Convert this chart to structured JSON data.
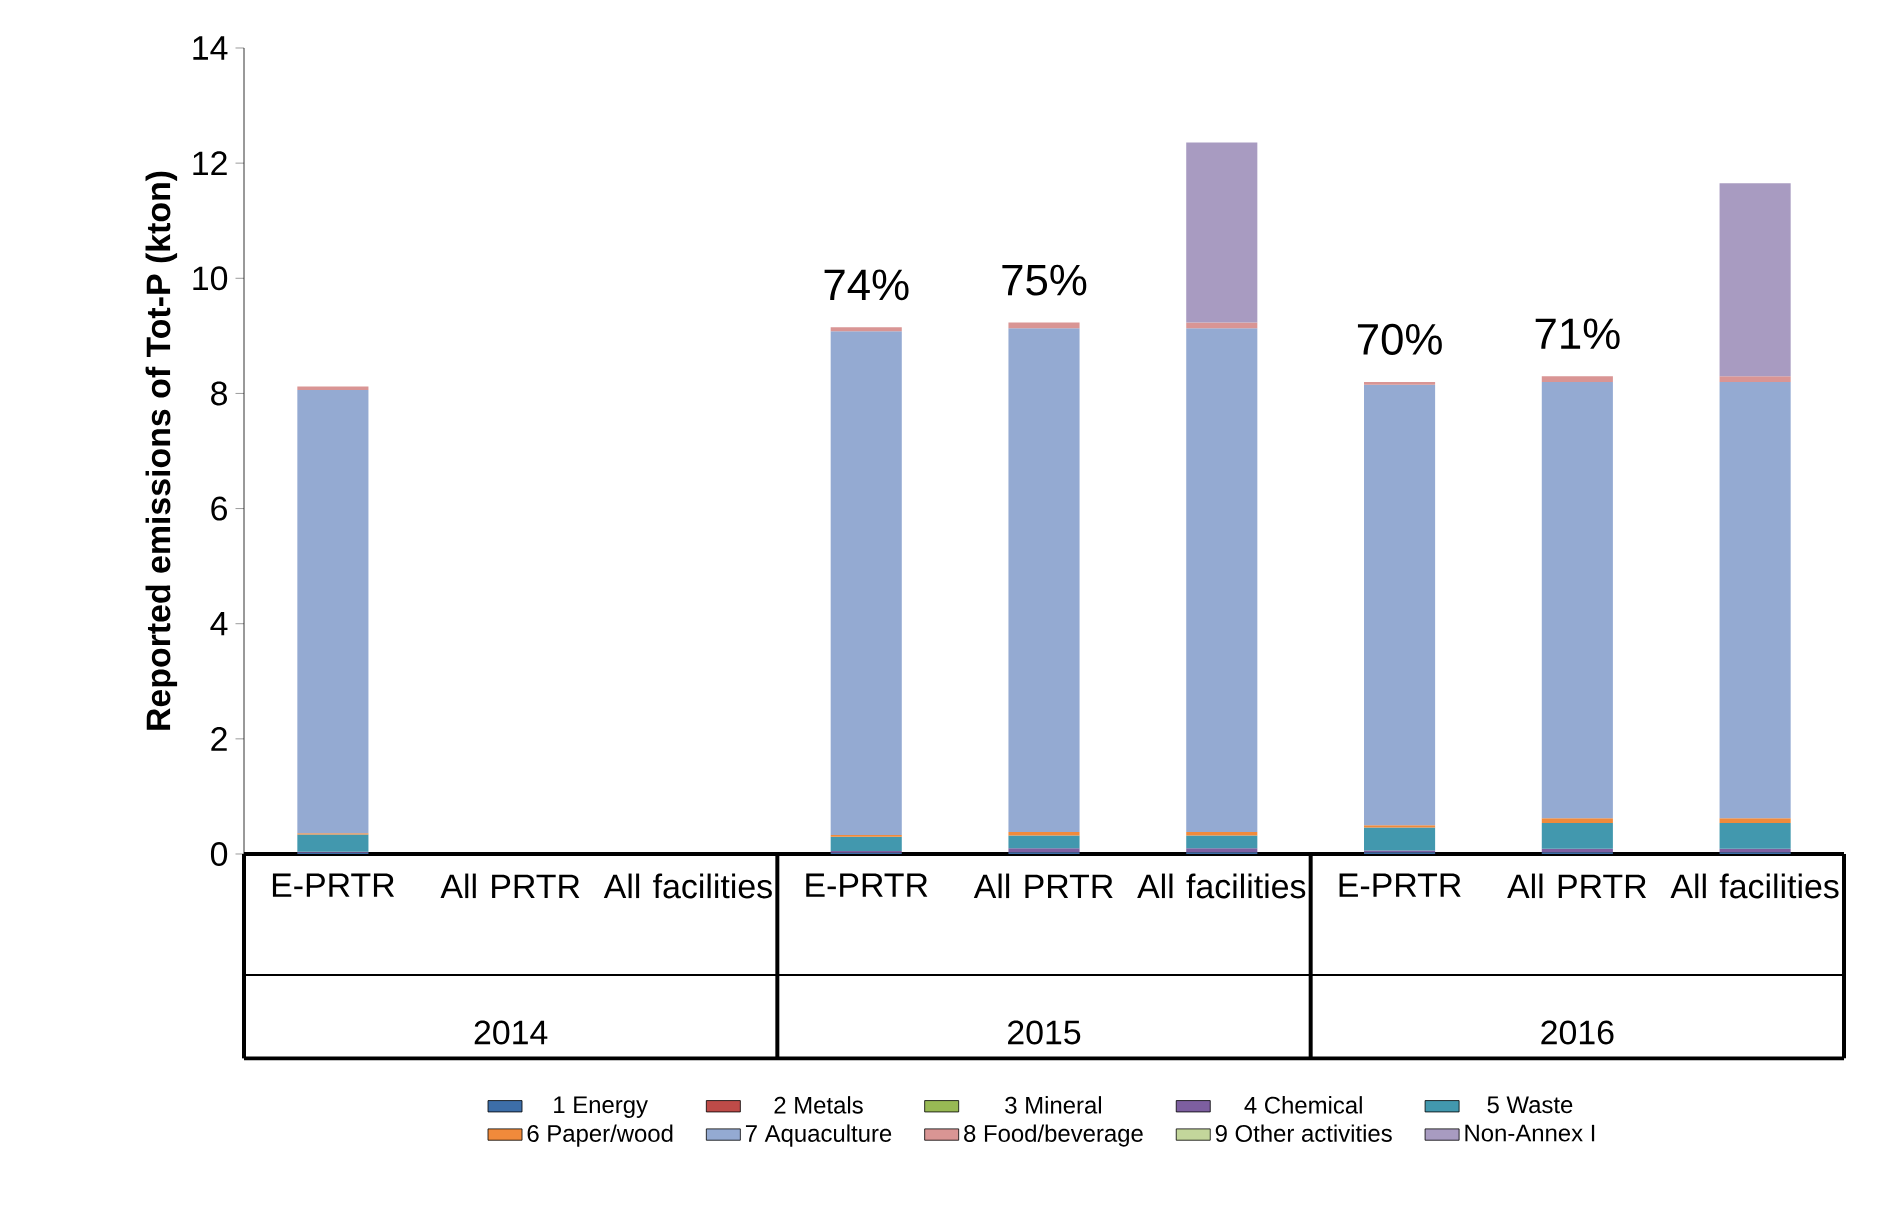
{
  "chart_data": {
    "type": "bar",
    "stacked": true,
    "ylabel": "Reported emissions of Tot-P (kton)",
    "categories": [
      "E-PRTR",
      "All PRTR",
      "All facilities",
      "E-PRTR",
      "All PRTR",
      "All facilities",
      "E-PRTR",
      "All PRTR",
      "All facilities"
    ],
    "annotations": [
      "2014",
      "2015",
      "2016",
      "74%",
      "75%",
      "70%",
      "71%"
    ],
    "ylim": [
      0,
      14
    ],
    "yticks": [
      0,
      2,
      4,
      6,
      8,
      10,
      12,
      14
    ],
    "grid": false,
    "legend": "bottom",
    "series": [
      {
        "name": "1 Energy",
        "color": "#3d6ea8",
        "values": [
          0.02,
          null,
          null,
          0.02,
          0.03,
          0.03,
          0.03,
          0.03,
          0.03
        ]
      },
      {
        "name": "2 Metals",
        "color": "#be4b48",
        "values": [
          0,
          null,
          null,
          0,
          0,
          0,
          0,
          0,
          0
        ]
      },
      {
        "name": "3 Mineral",
        "color": "#98b954",
        "values": [
          0,
          null,
          null,
          0,
          0,
          0,
          0,
          0,
          0
        ]
      },
      {
        "name": "4 Chemical",
        "color": "#7d5fa0",
        "values": [
          0.02,
          null,
          null,
          0.03,
          0.07,
          0.07,
          0.03,
          0.06,
          0.06
        ]
      },
      {
        "name": "5 Waste",
        "color": "#4298ae",
        "values": [
          0.3,
          null,
          null,
          0.25,
          0.22,
          0.22,
          0.4,
          0.45,
          0.45
        ]
      },
      {
        "name": "6 Paper/wood",
        "color": "#f08a3b",
        "values": [
          0.02,
          null,
          null,
          0.03,
          0.06,
          0.06,
          0.04,
          0.08,
          0.08
        ]
      },
      {
        "name": "7 Aquaculture",
        "color": "#94aad2",
        "values": [
          7.7,
          null,
          null,
          8.75,
          8.75,
          8.75,
          7.65,
          7.58,
          7.58
        ]
      },
      {
        "name": "8 Food/beverage",
        "color": "#d99594",
        "values": [
          0.06,
          null,
          null,
          0.07,
          0.1,
          0.1,
          0.05,
          0.1,
          0.1
        ]
      },
      {
        "name": "9 Other activities",
        "color": "#c3d69b",
        "values": [
          0,
          null,
          null,
          0,
          0,
          0,
          0,
          0,
          0
        ]
      },
      {
        "name": "Non-Annex I",
        "color": "#a89bc1",
        "values": [
          0,
          null,
          null,
          0,
          0,
          3.13,
          0,
          0,
          3.35
        ]
      }
    ]
  }
}
